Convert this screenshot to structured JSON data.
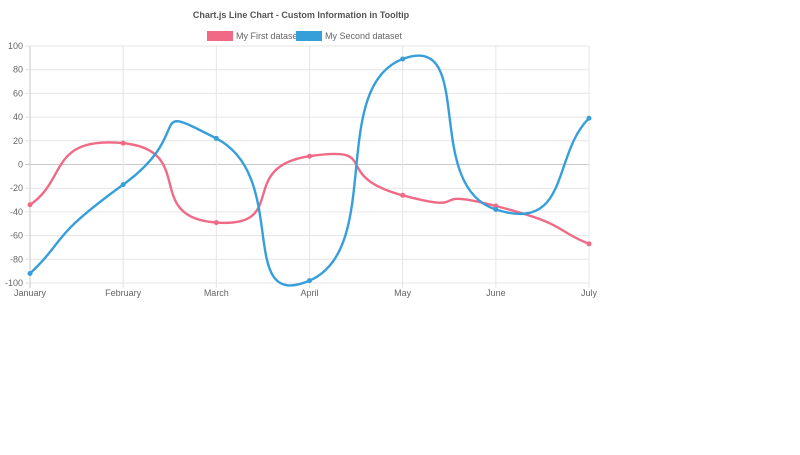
{
  "chart_data": {
    "type": "line",
    "title": "Chart.js Line Chart - Custom Information in Tooltip",
    "categories": [
      "January",
      "February",
      "March",
      "April",
      "May",
      "June",
      "July"
    ],
    "y_ticks": [
      "100",
      "80",
      "60",
      "40",
      "20",
      "0",
      "-20",
      "-40",
      "-60",
      "-80",
      "-100"
    ],
    "ylim": [
      -100,
      100
    ],
    "grid": true,
    "legend_position": "top",
    "series": [
      {
        "name": "My First dataset",
        "color": "#f06a86",
        "values": [
          -34,
          18,
          -49,
          7,
          -26,
          -35,
          -67
        ]
      },
      {
        "name": "My Second dataset",
        "color": "#369fda",
        "values": [
          -92,
          -17,
          22,
          -98,
          89,
          -38,
          39
        ]
      }
    ]
  }
}
